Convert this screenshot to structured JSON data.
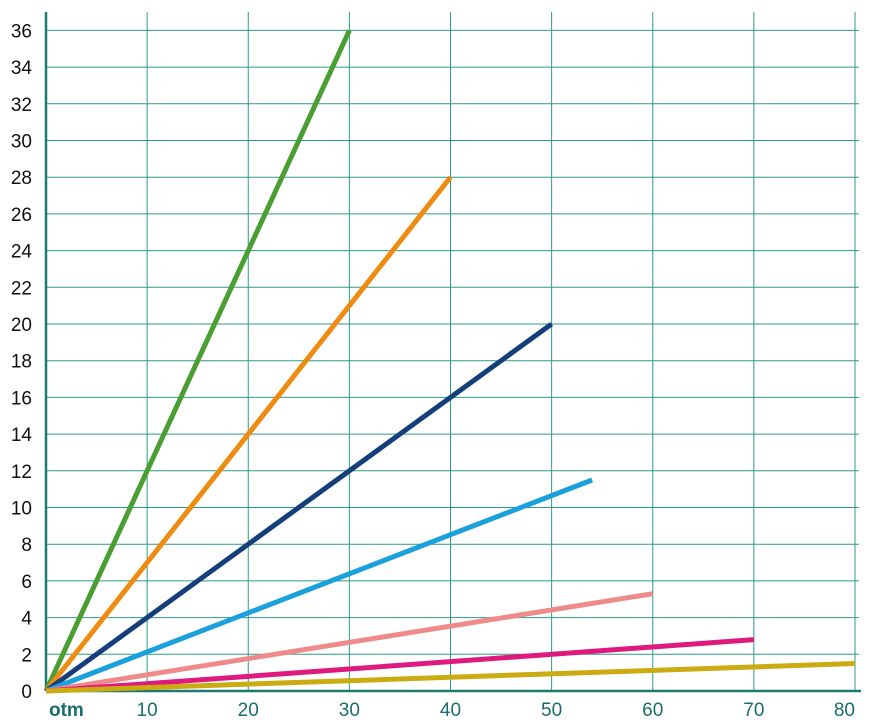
{
  "chart_data": {
    "type": "line",
    "title": "",
    "xlabel": "",
    "ylabel": "",
    "origin_label": "otm",
    "xlim": [
      0,
      80
    ],
    "ylim": [
      0,
      37
    ],
    "grid": true,
    "x_ticks": [
      10,
      20,
      30,
      40,
      50,
      60,
      70,
      80
    ],
    "x_tick_labels": [
      "10",
      "20",
      "30",
      "40",
      "50",
      "60",
      "70",
      "80"
    ],
    "y_ticks": [
      0,
      2,
      4,
      6,
      8,
      10,
      12,
      14,
      16,
      18,
      20,
      22,
      24,
      26,
      28,
      30,
      32,
      34,
      36
    ],
    "y_tick_labels": [
      "0",
      "2",
      "4",
      "6",
      "8",
      "10",
      "12",
      "14",
      "16",
      "18",
      "20",
      "22",
      "24",
      "26",
      "28",
      "30",
      "32",
      "34",
      "36"
    ],
    "grid_color": "#2e9a86",
    "series": [
      {
        "color": "#4a9e32",
        "points": [
          [
            0,
            0
          ],
          [
            30,
            36
          ]
        ]
      },
      {
        "color": "#ee8c12",
        "points": [
          [
            0,
            0
          ],
          [
            40,
            28
          ]
        ]
      },
      {
        "color": "#153f7a",
        "points": [
          [
            0,
            0
          ],
          [
            50,
            20
          ]
        ]
      },
      {
        "color": "#1aa0dc",
        "points": [
          [
            0,
            0
          ],
          [
            54,
            11.5
          ]
        ]
      },
      {
        "color": "#ee8a8a",
        "points": [
          [
            0,
            0
          ],
          [
            60,
            5.3
          ]
        ]
      },
      {
        "color": "#de1a7e",
        "points": [
          [
            0,
            0
          ],
          [
            70,
            2.8
          ]
        ]
      },
      {
        "color": "#ccaa12",
        "points": [
          [
            0,
            0
          ],
          [
            80,
            1.5
          ]
        ]
      }
    ]
  }
}
